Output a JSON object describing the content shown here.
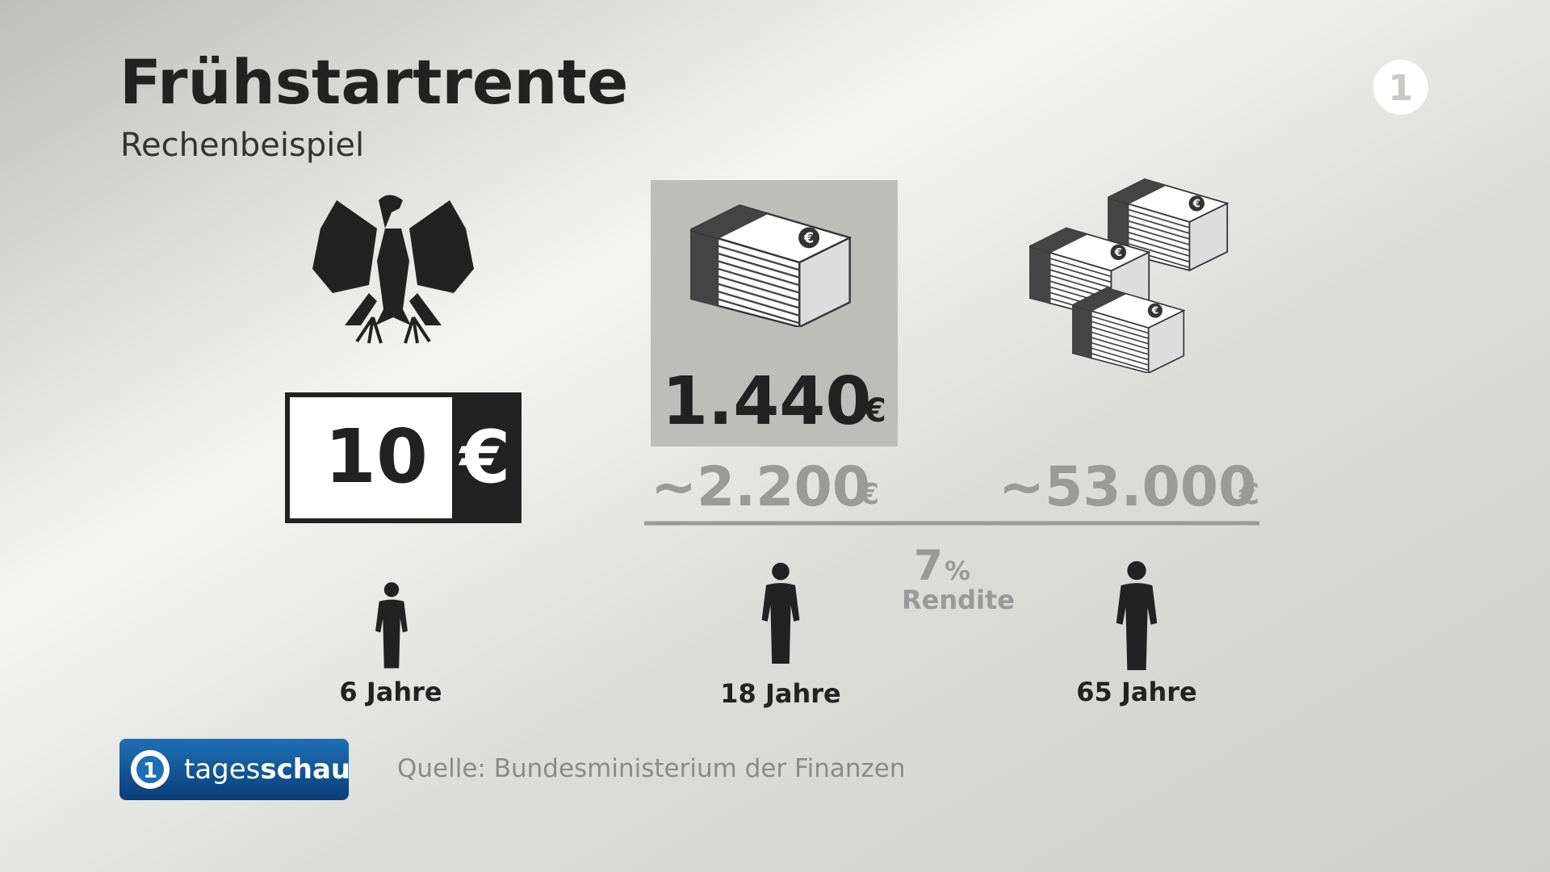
{
  "header": {
    "title": "Frühstartrente",
    "subtitle": "Rechenbeispiel"
  },
  "start": {
    "amount": "10",
    "currency": "€",
    "age": "6 Jahre"
  },
  "middle": {
    "amount": "1.440",
    "currency": "€",
    "projection": "~2.200",
    "projection_currency": "€",
    "age": "18 Jahre"
  },
  "end": {
    "projection": "~53.000",
    "projection_currency": "€",
    "age": "65 Jahre"
  },
  "rate": {
    "value": "7",
    "unit": "%",
    "label": "Rendite"
  },
  "footer": {
    "logo_part1": "tages",
    "logo_part2": "schau",
    "source": "Quelle: Bundesministerium der Finanzen"
  }
}
